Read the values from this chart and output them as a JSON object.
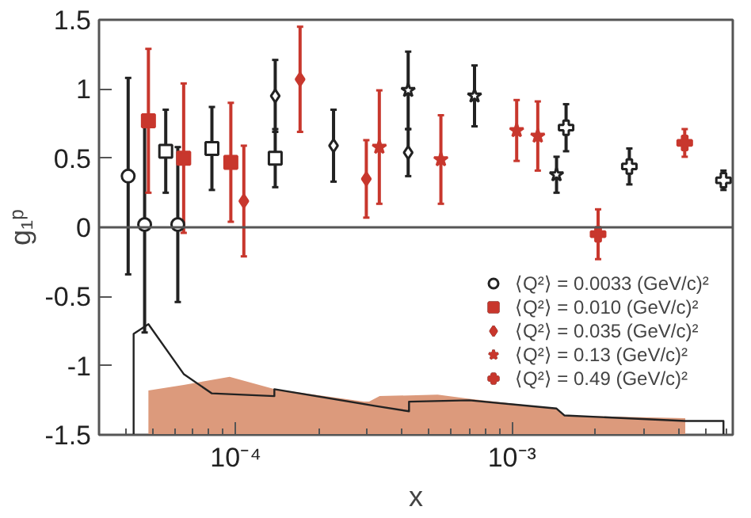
{
  "chart_data": {
    "type": "scatter",
    "xlabel": "x",
    "ylabel": "g₁ᵖ",
    "log": "x",
    "xlim": [
      3.2e-05,
      0.0063
    ],
    "ylim": [
      -1.5,
      1.5
    ],
    "xticks": [
      {
        "value": 4e-05,
        "label": null
      },
      {
        "value": 5e-05,
        "label": null
      },
      {
        "value": 6e-05,
        "label": null
      },
      {
        "value": 7e-05,
        "label": null
      },
      {
        "value": 8e-05,
        "label": null
      },
      {
        "value": 9e-05,
        "label": null
      },
      {
        "value": 0.0001,
        "label": "10⁻⁴"
      },
      {
        "value": 0.0002,
        "label": null
      },
      {
        "value": 0.0003,
        "label": null
      },
      {
        "value": 0.0004,
        "label": null
      },
      {
        "value": 0.0005,
        "label": null
      },
      {
        "value": 0.0006,
        "label": null
      },
      {
        "value": 0.0007,
        "label": null
      },
      {
        "value": 0.0008,
        "label": null
      },
      {
        "value": 0.0009,
        "label": null
      },
      {
        "value": 0.001,
        "label": "10⁻³"
      },
      {
        "value": 0.002,
        "label": null
      },
      {
        "value": 0.003,
        "label": null
      },
      {
        "value": 0.004,
        "label": null
      },
      {
        "value": 0.005,
        "label": null
      },
      {
        "value": 0.006,
        "label": null
      }
    ],
    "yticks": [
      -1.5,
      -1,
      -0.5,
      0,
      0.5,
      1,
      1.5
    ],
    "grid": false,
    "legend": "bottom right",
    "ref_lines": [
      {
        "axis": "y",
        "value": 0,
        "color": "#555555"
      }
    ],
    "series": [
      {
        "type": "area",
        "color": "#dc9a7c",
        "x": [
          4.83e-05,
          4.83e-05,
          6.48e-05,
          9.5e-05,
          0.000138,
          0.000291,
          0.000304,
          0.000332,
          0.000538,
          0.000701,
          0.00145,
          0.00155,
          0.00424,
          0.00424
        ],
        "values": [
          -1.5,
          -1.18,
          -1.14,
          -1.08,
          -1.17,
          -1.26,
          -1.26,
          -1.22,
          -1.21,
          -1.24,
          -1.31,
          -1.36,
          -1.38,
          -1.5
        ]
      },
      {
        "type": "line",
        "color": "#222222",
        "x": [
          4.27e-05,
          4.27e-05,
          4.83e-05,
          6.48e-05,
          8.18e-05,
          0.000138,
          0.000138,
          0.000318,
          0.000424,
          0.000424,
          0.000701,
          0.00145,
          0.00155,
          0.00424,
          0.00583,
          0.00583
        ],
        "values": [
          -1.5,
          -0.77,
          -0.7,
          -1.06,
          -1.2,
          -1.22,
          -1.17,
          -1.29,
          -1.33,
          -1.26,
          -1.25,
          -1.31,
          -1.36,
          -1.4,
          -1.4,
          -1.5
        ]
      },
      {
        "name": "⟨Q²⟩ = 0.0033 (GeV/c)²",
        "color": "#222222",
        "marker": "circle",
        "x": [
          4.08e-05,
          4.68e-05,
          6.17e-05
        ],
        "values": [
          0.37,
          0.02,
          0.02
        ],
        "errors": [
          0.71,
          0.78,
          0.56
        ]
      },
      {
        "name": "⟨Q²⟩ = 0.010 (GeV/c)²",
        "color": "#222222",
        "marker": "square",
        "x": [
          5.58e-05,
          8.2e-05,
          0.000139
        ],
        "values": [
          0.55,
          0.57,
          0.5
        ],
        "errors": [
          0.3,
          0.3,
          0.21
        ]
      },
      {
        "color": "#c8372d",
        "marker": "square",
        "x": [
          4.83e-05,
          6.48e-05,
          9.6e-05
        ],
        "values": [
          0.77,
          0.5,
          0.47
        ],
        "errors": [
          0.52,
          0.54,
          0.43
        ]
      },
      {
        "name": "⟨Q²⟩ = 0.035 (GeV/c)²",
        "color": "#222222",
        "marker": "diamond",
        "x": [
          0.000139,
          0.000226,
          0.000421
        ],
        "values": [
          0.95,
          0.59,
          0.54
        ],
        "errors": [
          0.26,
          0.26,
          0.17
        ]
      },
      {
        "color": "#c8372d",
        "marker": "diamond",
        "x": [
          0.000107,
          0.000171,
          0.000297
        ],
        "values": [
          0.19,
          1.07,
          0.35
        ],
        "errors": [
          0.4,
          0.38,
          0.28
        ]
      },
      {
        "name": "⟨Q²⟩ = 0.13 (GeV/c)²",
        "color": "#222222",
        "marker": "star",
        "x": [
          0.000421,
          0.000732,
          0.00145
        ],
        "values": [
          0.99,
          0.95,
          0.38
        ],
        "errors": [
          0.28,
          0.22,
          0.13
        ]
      },
      {
        "color": "#c8372d",
        "marker": "star",
        "x": [
          0.000331,
          0.000553,
          0.00104,
          0.00124
        ],
        "values": [
          0.58,
          0.49,
          0.7,
          0.66
        ],
        "errors": [
          0.41,
          0.32,
          0.22,
          0.25
        ]
      },
      {
        "name": "⟨Q²⟩ = 0.49 (GeV/c)²",
        "color": "#222222",
        "marker": "cross",
        "x": [
          0.00157,
          0.00266,
          0.00583
        ],
        "values": [
          0.72,
          0.44,
          0.34
        ],
        "errors": [
          0.17,
          0.13,
          0.07
        ]
      },
      {
        "color": "#c8372d",
        "marker": "cross",
        "x": [
          0.00205,
          0.00422
        ],
        "values": [
          -0.05,
          0.61
        ],
        "errors": [
          0.18,
          0.1
        ]
      }
    ]
  }
}
